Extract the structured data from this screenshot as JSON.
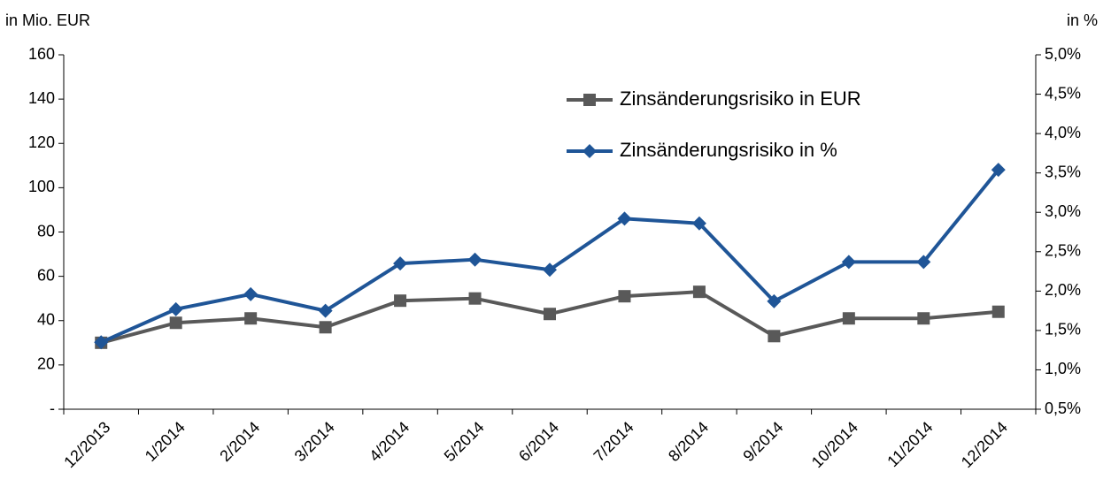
{
  "chart_data": {
    "type": "line",
    "y_axis_label": "in Mio. EUR",
    "y2_axis_label": "in %",
    "categories": [
      "12/2013",
      "1/2014",
      "2/2014",
      "3/2014",
      "4/2014",
      "5/2014",
      "6/2014",
      "7/2014",
      "8/2014",
      "9/2014",
      "10/2014",
      "11/2014",
      "12/2014"
    ],
    "series": [
      {
        "name": "Zinsänderungsrisiko in EUR",
        "color": "#595959",
        "marker": "square",
        "values": [
          30,
          39,
          41,
          37,
          49,
          50,
          43,
          51,
          53,
          33,
          41,
          41,
          44
        ]
      },
      {
        "name": "Zinsänderungsrisiko in %",
        "color": "#1f5597",
        "marker": "diamond",
        "axis": "y2",
        "values": [
          1.35,
          1.77,
          1.96,
          1.75,
          2.35,
          2.4,
          2.27,
          2.92,
          2.86,
          1.87,
          2.37,
          2.37,
          3.54
        ]
      }
    ],
    "ylim": [
      0,
      160
    ],
    "yticks": [
      {
        "value": 0,
        "label": "-"
      },
      20,
      40,
      60,
      80,
      100,
      120,
      140,
      160
    ],
    "y2lim": [
      0.5,
      5.0
    ],
    "y2ticks": [
      {
        "value": 0.5,
        "label": "0,5%"
      },
      {
        "value": 1.0,
        "label": "1,0%"
      },
      {
        "value": 1.5,
        "label": "1,5%"
      },
      {
        "value": 2.0,
        "label": "2,0%"
      },
      {
        "value": 2.5,
        "label": "2,5%"
      },
      {
        "value": 3.0,
        "label": "3,0%"
      },
      {
        "value": 3.5,
        "label": "3,5%"
      },
      {
        "value": 4.0,
        "label": "4,0%"
      },
      {
        "value": 4.5,
        "label": "4,5%"
      },
      {
        "value": 5.0,
        "label": "5,0%"
      }
    ],
    "legend": "top-right"
  }
}
